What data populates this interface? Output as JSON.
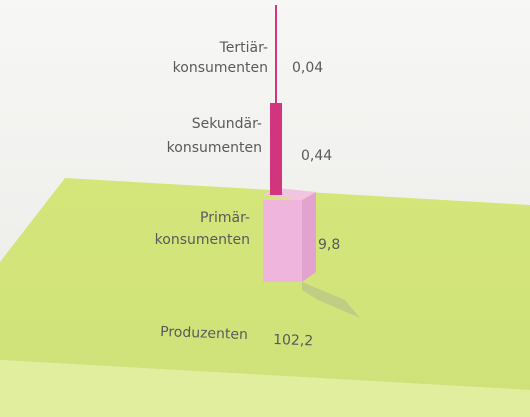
{
  "levels": [
    {
      "label": [
        "Tertiär-",
        "konsumenten"
      ],
      "value": "0,04"
    },
    {
      "label": [
        "Sekundär-",
        "konsumenten"
      ],
      "value": "0,44"
    },
    {
      "label": [
        "Primär-",
        "konsumenten"
      ],
      "value": "9,8"
    },
    {
      "label": [
        "Produzenten"
      ],
      "value": "102,2"
    }
  ]
}
